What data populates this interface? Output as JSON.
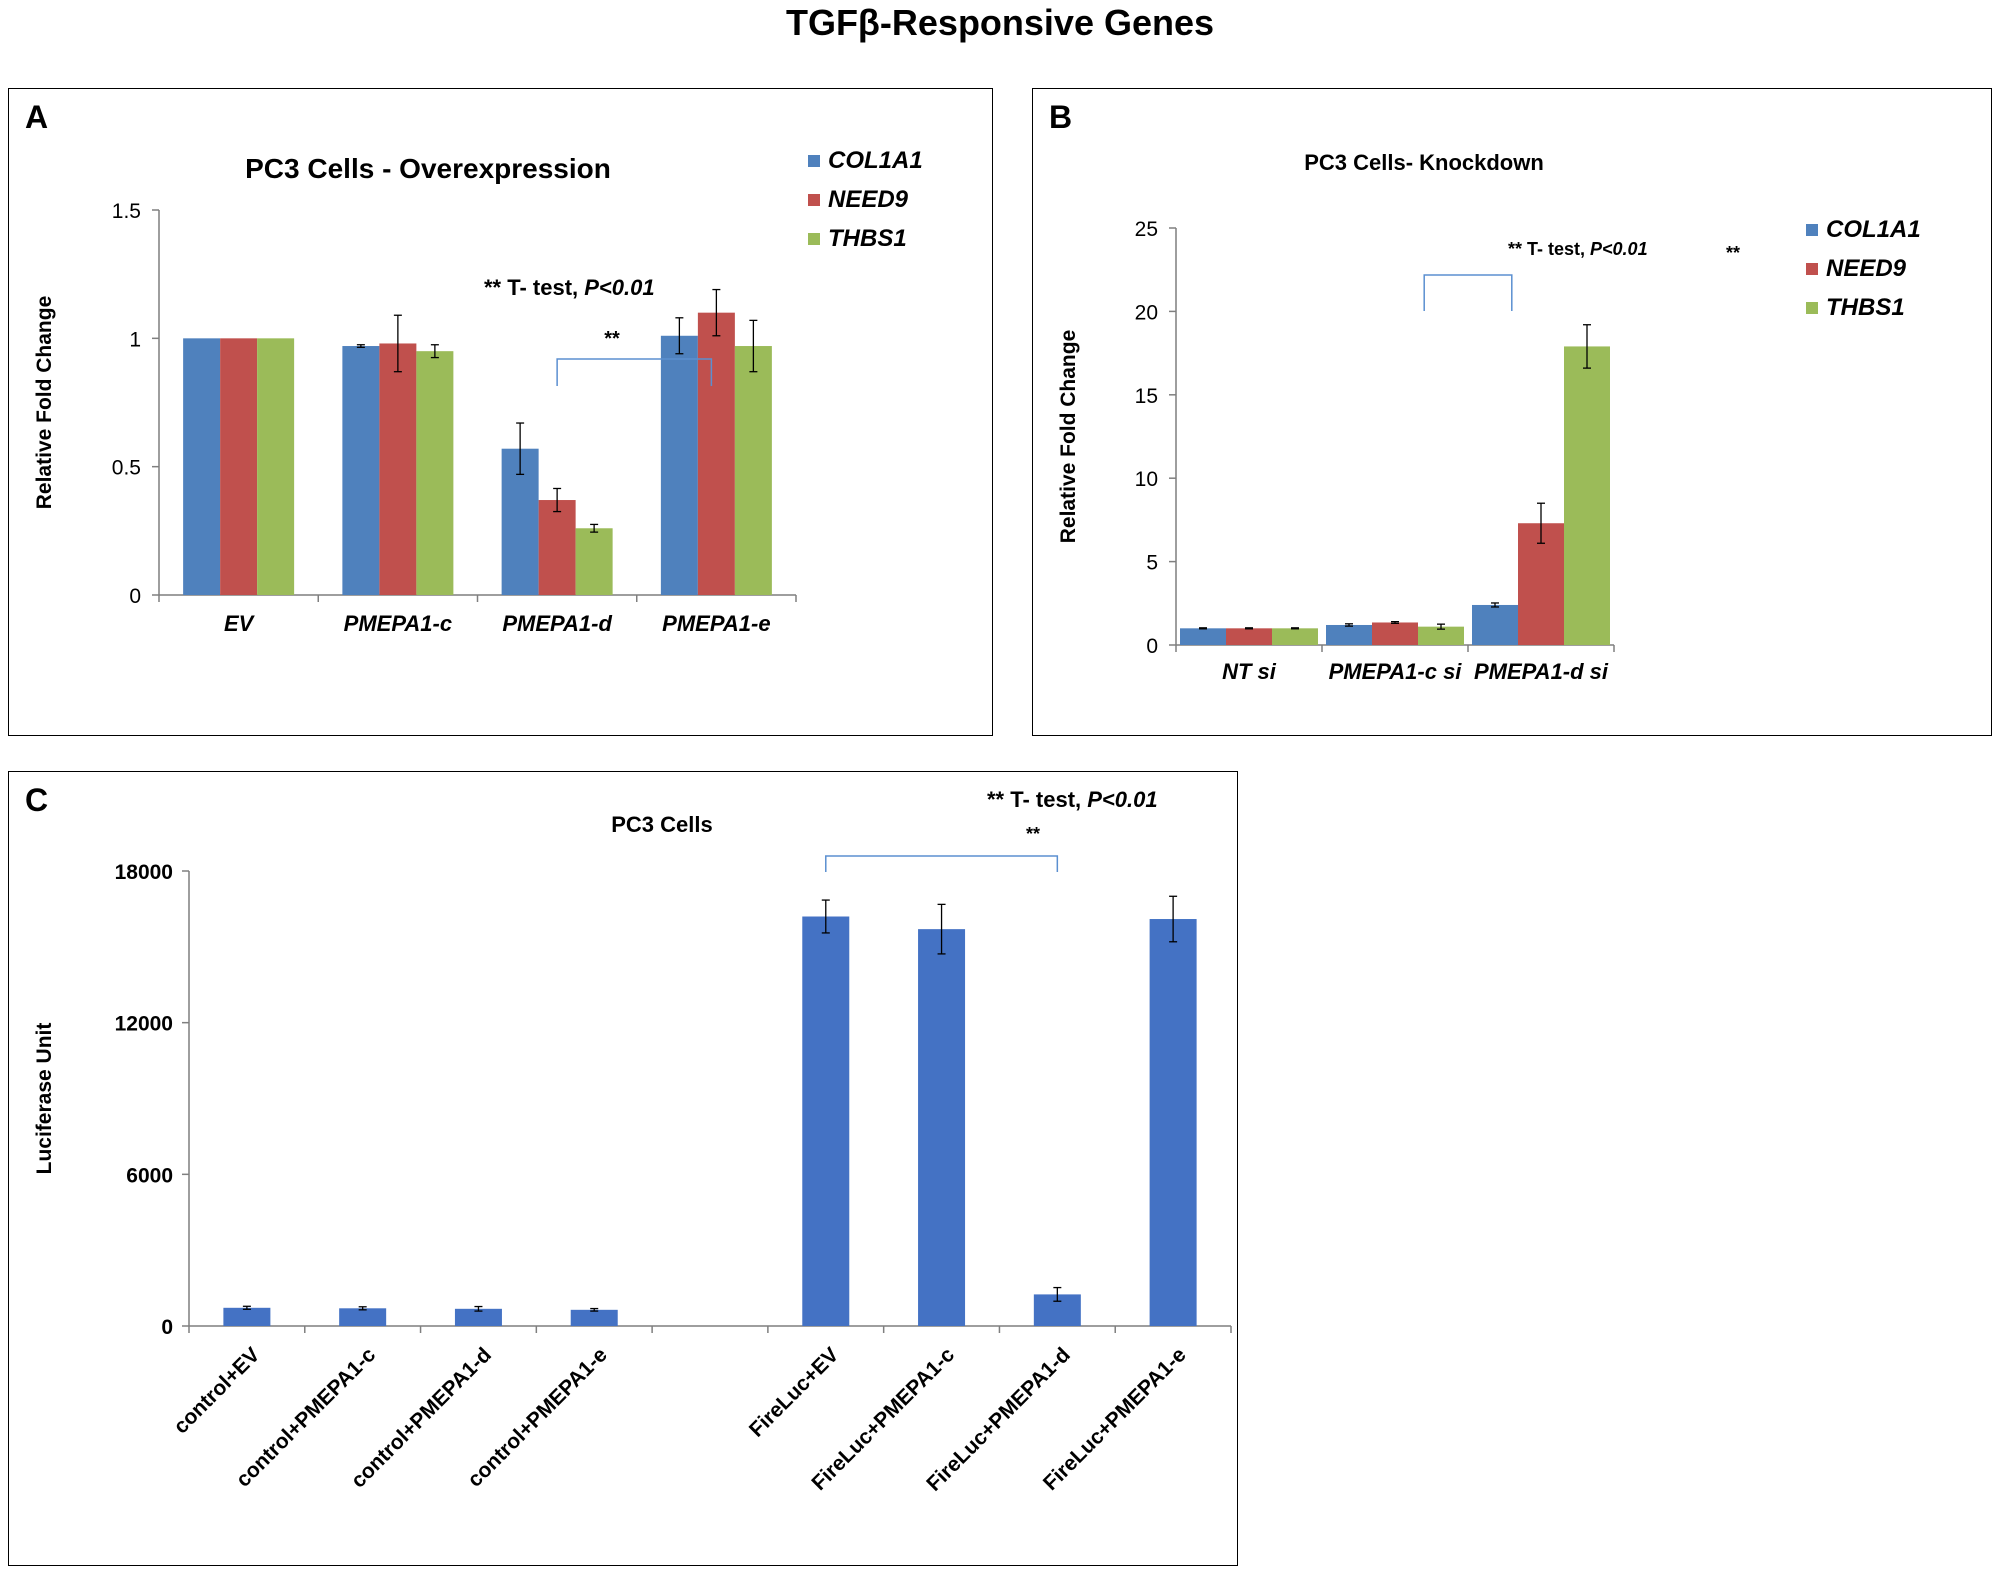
{
  "figure_title": "TGFβ-Responsive Genes",
  "panels": {
    "A": {
      "letter": "A"
    },
    "B": {
      "letter": "B"
    },
    "C": {
      "letter": "C"
    }
  },
  "colors": {
    "COL1A1": "#4f81bd",
    "NEED9": "#c0504d",
    "THBS1": "#9bbb59",
    "luciferase": "#4472c4",
    "bracket": "#5b8fd0"
  },
  "chart_data": [
    {
      "id": "A",
      "type": "bar",
      "title": "PC3 Cells - Overexpression",
      "xlabel": "",
      "ylabel": "Relative Fold Change",
      "ylim": [
        0,
        1.5
      ],
      "yticks": [
        "0",
        "0.5",
        "1",
        "1.5"
      ],
      "ytick_values": [
        0,
        0.5,
        1,
        1.5
      ],
      "grid": false,
      "legend": "top-right",
      "categories": [
        "EV",
        "PMEPA1-c",
        "PMEPA1-d",
        "PMEPA1-e"
      ],
      "series": [
        {
          "name": "COL1A1",
          "values": [
            1.0,
            0.97,
            0.57,
            1.01
          ],
          "errors": [
            0.0,
            0.005,
            0.1,
            0.07
          ]
        },
        {
          "name": "NEED9",
          "values": [
            1.0,
            0.98,
            0.37,
            1.1
          ],
          "errors": [
            0.0,
            0.11,
            0.045,
            0.09
          ]
        },
        {
          "name": "THBS1",
          "values": [
            1.0,
            0.95,
            0.26,
            0.97
          ],
          "errors": [
            0.0,
            0.025,
            0.015,
            0.1
          ]
        }
      ],
      "annotation": {
        "prefix": "** T- test, ",
        "pvalue": "P<0.01"
      },
      "significance_mark": "**",
      "bracket": {
        "from_category": 2,
        "to_category": 3
      }
    },
    {
      "id": "B",
      "type": "bar",
      "title": "PC3 Cells- Knockdown",
      "xlabel": "",
      "ylabel": "Relative Fold Change",
      "ylim": [
        0,
        25
      ],
      "yticks": [
        "0",
        "5",
        "10",
        "15",
        "20",
        "25"
      ],
      "ytick_values": [
        0,
        5,
        10,
        15,
        20,
        25
      ],
      "grid": false,
      "legend": "top-right",
      "categories": [
        "NT si",
        "PMEPA1-c si",
        "PMEPA1-d si"
      ],
      "series": [
        {
          "name": "COL1A1",
          "values": [
            1.0,
            1.2,
            2.4
          ],
          "errors": [
            0.03,
            0.07,
            0.12
          ]
        },
        {
          "name": "NEED9",
          "values": [
            1.0,
            1.35,
            7.3
          ],
          "errors": [
            0.03,
            0.05,
            1.2
          ]
        },
        {
          "name": "THBS1",
          "values": [
            1.0,
            1.1,
            17.9
          ],
          "errors": [
            0.03,
            0.15,
            1.3
          ]
        }
      ],
      "annotation": {
        "prefix": "** T- test, ",
        "pvalue": "P<0.01"
      },
      "significance_mark": "**",
      "bracket": {
        "from_x": 1.7,
        "to_x": 2.3
      }
    },
    {
      "id": "C",
      "type": "bar",
      "title": "PC3 Cells",
      "xlabel": "",
      "ylabel": "Luciferase Unit",
      "ylim": [
        0,
        18000
      ],
      "yticks": [
        "0",
        "6000",
        "12000",
        "18000"
      ],
      "ytick_values": [
        0,
        6000,
        12000,
        18000
      ],
      "grid": false,
      "legend": "none",
      "categories": [
        "control+EV",
        "control+PMEPA1-c",
        "control+PMEPA1-d",
        "control+PMEPA1-e",
        "",
        "FireLuc+EV",
        "FireLuc+PMEPA1-c",
        "FireLuc+PMEPA1-d",
        "FireLuc+PMEPA1-e"
      ],
      "values": [
        720,
        700,
        680,
        640,
        null,
        16200,
        15700,
        1250,
        16100
      ],
      "errors": [
        60,
        60,
        90,
        50,
        null,
        650,
        980,
        270,
        900
      ],
      "annotation": {
        "prefix": "** T- test, ",
        "pvalue": "P<0.01"
      },
      "significance_mark": "**",
      "bracket": {
        "from_category": 5,
        "to_category": 7
      }
    }
  ]
}
